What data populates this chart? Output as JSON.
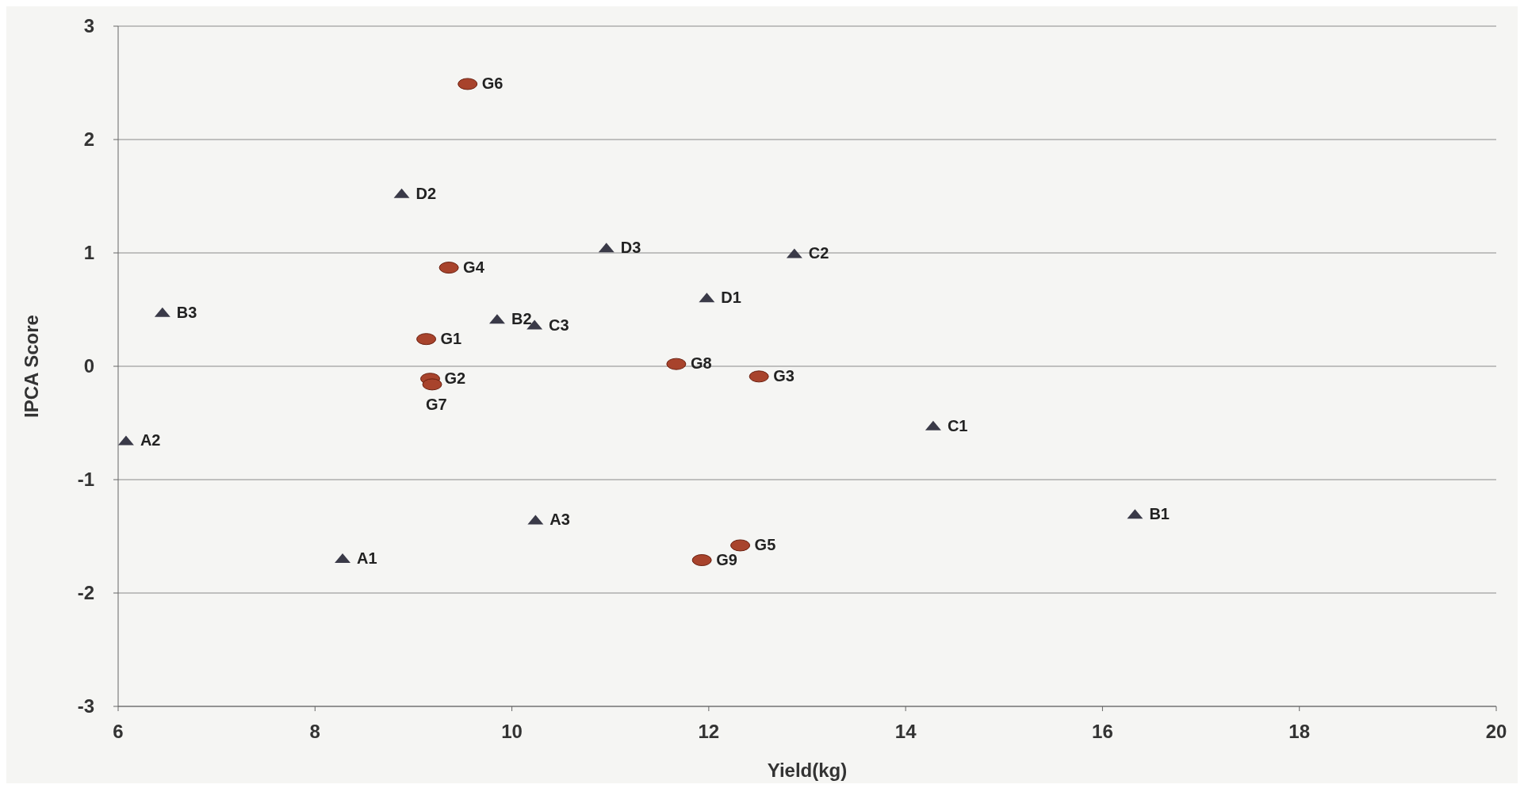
{
  "chart_data": {
    "type": "scatter",
    "xlabel": "Yield(kg)",
    "ylabel": "IPCA Score",
    "xlim": [
      6,
      20
    ],
    "ylim": [
      -3,
      3
    ],
    "xticks": [
      6,
      8,
      10,
      12,
      14,
      16,
      18,
      20
    ],
    "yticks": [
      -3,
      -2,
      -1,
      0,
      1,
      2,
      3
    ],
    "grid": "y",
    "series": [
      {
        "color": "#3a3a48",
        "marker": "triangle",
        "x": [
          8.88,
          10.96,
          12.87,
          11.98,
          6.45,
          9.85,
          10.23,
          14.28,
          6.08,
          10.24,
          16.33,
          8.28
        ],
        "values": [
          1.52,
          1.04,
          0.99,
          0.6,
          0.47,
          0.41,
          0.36,
          -0.53,
          -0.66,
          -1.36,
          -1.31,
          -1.7
        ]
      },
      {
        "color": "#a8432c",
        "marker": "circle",
        "x": [
          9.55,
          9.36,
          9.13,
          11.67,
          12.51,
          9.17,
          9.19,
          12.32,
          11.93
        ],
        "values": [
          2.49,
          0.87,
          0.24,
          0.02,
          -0.09,
          -0.11,
          -0.16,
          -1.58,
          -1.71
        ]
      }
    ],
    "annotations": [
      {
        "text": "D2",
        "x": 8.88,
        "y": 1.52
      },
      {
        "text": "D3",
        "x": 10.96,
        "y": 1.04
      },
      {
        "text": "C2",
        "x": 12.87,
        "y": 0.99
      },
      {
        "text": "D1",
        "x": 11.98,
        "y": 0.6
      },
      {
        "text": "B3",
        "x": 6.45,
        "y": 0.47
      },
      {
        "text": "B2",
        "x": 9.85,
        "y": 0.41
      },
      {
        "text": "C3",
        "x": 10.23,
        "y": 0.36
      },
      {
        "text": "C1",
        "x": 14.28,
        "y": -0.53
      },
      {
        "text": "A2",
        "x": 6.08,
        "y": -0.66
      },
      {
        "text": "A3",
        "x": 10.24,
        "y": -1.36
      },
      {
        "text": "B1",
        "x": 16.33,
        "y": -1.31
      },
      {
        "text": "A1",
        "x": 8.28,
        "y": -1.7
      },
      {
        "text": "G6",
        "x": 9.55,
        "y": 2.49
      },
      {
        "text": "G4",
        "x": 9.36,
        "y": 0.87
      },
      {
        "text": "G1",
        "x": 9.13,
        "y": 0.24
      },
      {
        "text": "G8",
        "x": 11.67,
        "y": 0.02
      },
      {
        "text": "G3",
        "x": 12.51,
        "y": -0.09
      },
      {
        "text": "G2",
        "x": 9.17,
        "y": -0.11
      },
      {
        "text": "G7",
        "x": 9.19,
        "y": -0.16
      },
      {
        "text": "G5",
        "x": 12.32,
        "y": -1.58
      },
      {
        "text": "G9",
        "x": 11.93,
        "y": -1.71
      }
    ]
  }
}
